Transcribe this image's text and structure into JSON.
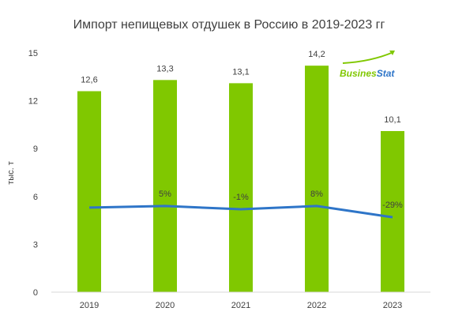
{
  "chart_data": {
    "type": "bar",
    "title": "Импорт непищевых отдушек в Россию в 2019-2023 гг",
    "ylabel": "тыс. т",
    "xlabel": "",
    "ylim": [
      0,
      15
    ],
    "yticks": [
      0,
      3,
      6,
      9,
      12,
      15
    ],
    "categories": [
      "2019",
      "2020",
      "2021",
      "2022",
      "2023"
    ],
    "series": [
      {
        "values": [
          12.6,
          13.3,
          13.1,
          14.2,
          10.1
        ],
        "labels": [
          "12,6",
          "13,3",
          "13,1",
          "14,2",
          "10,1"
        ]
      }
    ],
    "growth_line": {
      "values": [
        5.3,
        5.4,
        5.2,
        5.4,
        4.7
      ],
      "labels": [
        "",
        "5%",
        "-1%",
        "8%",
        "-29%"
      ]
    },
    "grid": false,
    "legend": "none"
  },
  "colors": {
    "bar": "#80c800",
    "line": "#2e75c8",
    "axis": "#d9d9d9"
  },
  "logo": {
    "text_a": "Busines",
    "text_b": "Stat",
    "icon": "growth-arrow-icon"
  }
}
